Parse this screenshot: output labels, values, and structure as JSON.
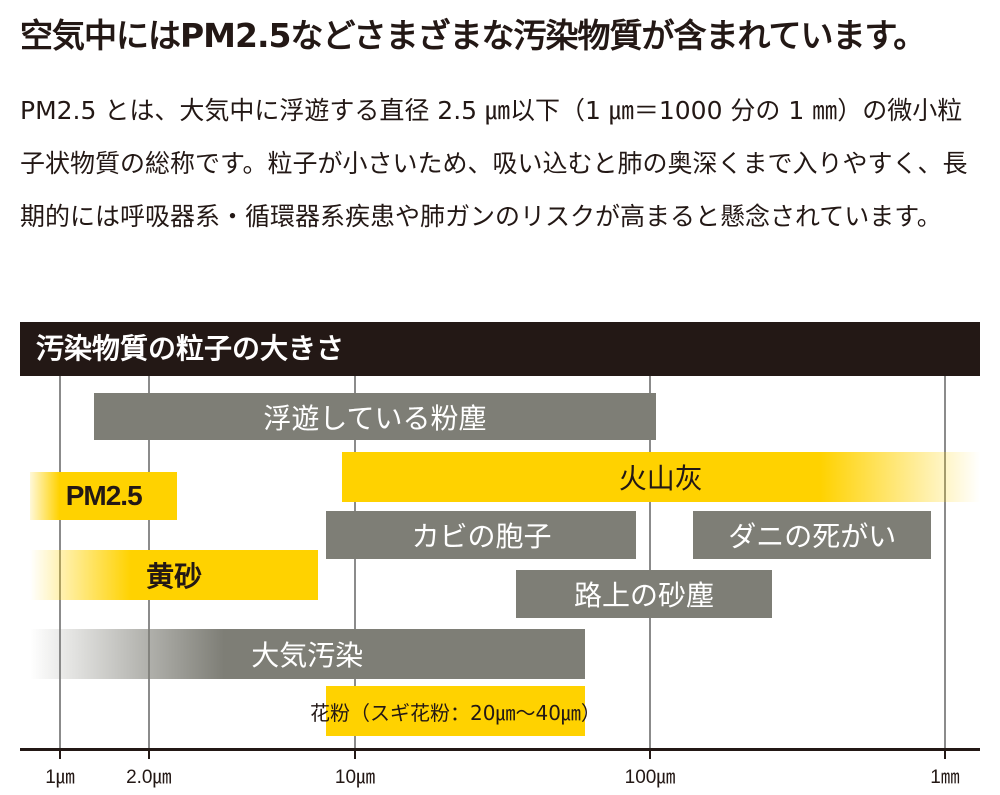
{
  "headline": "空気中にはPM2.5などさまざまな汚染物質が含まれています。",
  "description": "PM2.5 とは、大気中に浮遊する直径 2.5 ㎛以下（1 ㎛＝1000 分の 1 ㎜）の微小粒子状物質の総称です。粒子が小さいため、吸い込むと肺の奥深くまで入りやすく、長期的には呼吸器系・循環器系疾患や肺ガンのリスクが高まると懸念されています。",
  "chart_header": "汚染物質の粒子の大きさ",
  "colors": {
    "dark": "#231815",
    "gray_bar": "#7e7e76",
    "yellow_bar": "#ffd200"
  },
  "chart_data": {
    "type": "range",
    "title": "汚染物質の粒子の大きさ",
    "x_scale": "log",
    "x_unit": "µm",
    "x_ticks": [
      {
        "label": "1㎛",
        "value": 1
      },
      {
        "label": "2.0㎛",
        "value": 2
      },
      {
        "label": "10㎛",
        "value": 10
      },
      {
        "label": "100㎛",
        "value": 100
      },
      {
        "label": "1㎜",
        "value": 1000
      }
    ],
    "ranges": [
      {
        "label": "浮遊している粉塵",
        "from": 1.3,
        "to": 105,
        "color": "gray"
      },
      {
        "label": "火山灰",
        "from": 9,
        "to": 1000,
        "color": "yellow",
        "fade_right": true
      },
      {
        "label": "PM2.5",
        "from": 0.75,
        "to": 2.5,
        "color": "yellow",
        "fade_left": true,
        "style": "pm"
      },
      {
        "label": "カビの胞子",
        "from": 8,
        "to": 90,
        "color": "gray"
      },
      {
        "label": "ダニの死がい",
        "from": 140,
        "to": 900,
        "color": "gray"
      },
      {
        "label": "黄砂",
        "from": 0.75,
        "to": 7.5,
        "color": "yellow",
        "fade_left": true,
        "style": "bold"
      },
      {
        "label": "路上の砂塵",
        "from": 35,
        "to": 260,
        "color": "gray"
      },
      {
        "label": "大気汚染",
        "from": 0.75,
        "to": 60,
        "color": "gray",
        "fade_left": true
      },
      {
        "label": "花粉（スギ花粉：20㎛～40㎛）",
        "from": 8,
        "to": 60,
        "color": "yellow",
        "style": "small"
      }
    ]
  }
}
